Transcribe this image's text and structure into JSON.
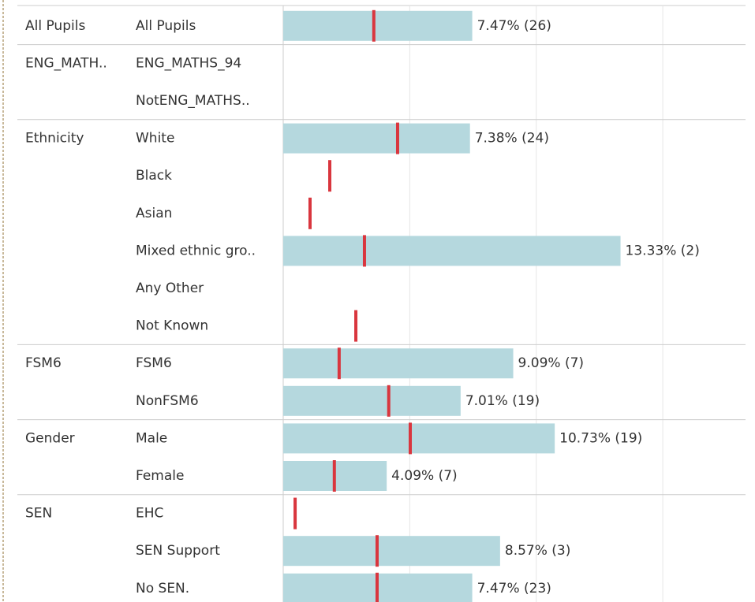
{
  "chart_data": {
    "type": "bar",
    "row_groups": [
      "All Pupils",
      "ENG_MATH..",
      null,
      "Ethnicity",
      null,
      null,
      null,
      null,
      null,
      "FSM6",
      null,
      "Gender",
      null,
      "SEN",
      null,
      null
    ],
    "categories": [
      "All Pupils",
      "ENG_MATHS_94",
      "NotENG_MATHS..",
      "White",
      "Black",
      "Asian",
      "Mixed ethnic gro..",
      "Any Other",
      "Not Known",
      "FSM6",
      "NonFSM6",
      "Male",
      "Female",
      "EHC",
      "SEN Support",
      "No SEN."
    ],
    "values": [
      7.47,
      null,
      null,
      7.38,
      null,
      null,
      13.33,
      null,
      null,
      9.09,
      7.01,
      10.73,
      4.09,
      null,
      8.57,
      7.47
    ],
    "value_labels": [
      "7.47% (26)",
      null,
      null,
      "7.38% (24)",
      null,
      null,
      "13.33% (2)",
      null,
      null,
      "9.09% (7)",
      "7.01% (19)",
      "10.73% (19)",
      "4.09% (7)",
      null,
      "8.57% (3)",
      "7.47% (23)"
    ],
    "markers": [
      3.58,
      null,
      null,
      4.52,
      1.84,
      1.06,
      3.21,
      null,
      2.87,
      2.21,
      4.17,
      5.02,
      2.02,
      0.47,
      3.71,
      3.71
    ],
    "color": "#b5d8de",
    "marker_color": "#d9363e",
    "xlim": [
      0,
      18.27
    ],
    "xticks": [
      0,
      5,
      10,
      15
    ],
    "grid": true
  }
}
